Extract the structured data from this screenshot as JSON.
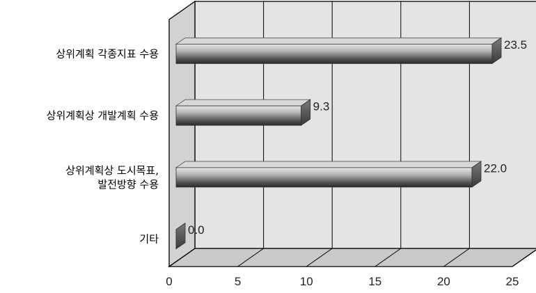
{
  "chart_data": {
    "type": "bar",
    "orientation": "horizontal",
    "three_d": true,
    "categories": [
      [
        "상위계획 각종지표 수용"
      ],
      [
        "상위계획상 개발계획 수용"
      ],
      [
        "상위계획상 도시목표,",
        "발전방향 수용"
      ],
      [
        "기타"
      ]
    ],
    "values": [
      23.5,
      9.3,
      22.0,
      0.0
    ],
    "value_labels": [
      "23.5",
      "9.3",
      "22.0",
      "0.0"
    ],
    "x_ticks": [
      "0",
      "5",
      "10",
      "15",
      "20",
      "25"
    ],
    "xlim": [
      0,
      25
    ],
    "grid": true,
    "legend": "none",
    "colors": {
      "wall": "#e4e4e4",
      "floor": "#c9c9c9",
      "side_wall": "#d2d2d2",
      "bar_light": "#dcdcdc",
      "bar_dark": "#2e2e2e",
      "bar_end": "#5a5a5a",
      "grid": "#000000"
    }
  }
}
